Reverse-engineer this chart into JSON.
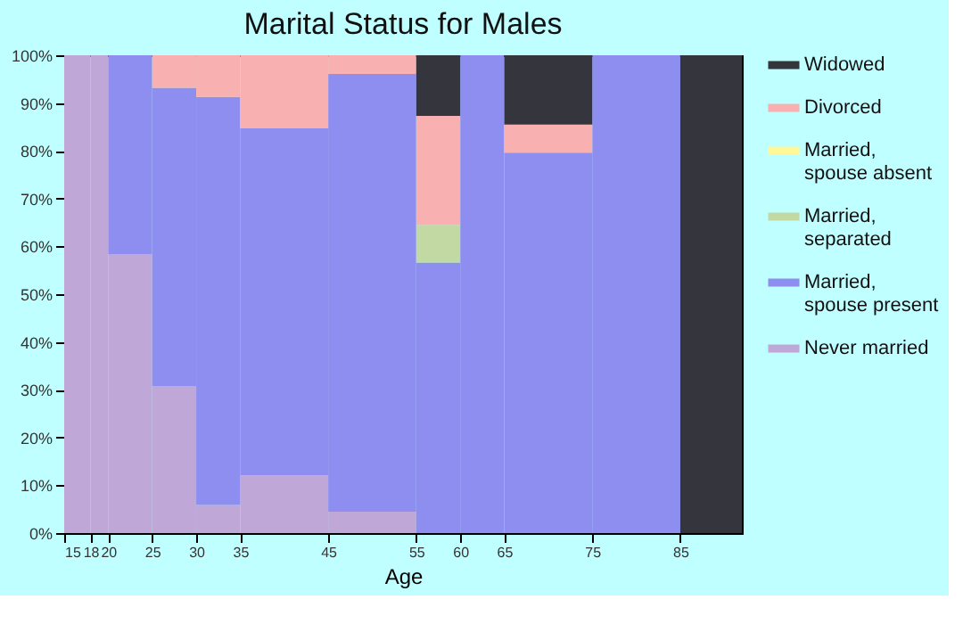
{
  "chart_data": {
    "type": "bar",
    "stacked": true,
    "title": "Marital Status for Males",
    "xlabel": "Age",
    "x": [
      16.5,
      19,
      22.5,
      27.5,
      32.5,
      40,
      50,
      57.5,
      62.5,
      70,
      80,
      88.5
    ],
    "xlim": [
      15,
      92
    ],
    "xticks": [
      15,
      18,
      20,
      25,
      30,
      35,
      45,
      55,
      60,
      65,
      75,
      85
    ],
    "ylim": [
      0,
      100
    ],
    "yticks": [
      {
        "value": 0,
        "label": "0%"
      },
      {
        "value": 10,
        "label": "10%"
      },
      {
        "value": 20,
        "label": "20%"
      },
      {
        "value": 30,
        "label": "30%"
      },
      {
        "value": 40,
        "label": "40%"
      },
      {
        "value": 50,
        "label": "50%"
      },
      {
        "value": 60,
        "label": "60%"
      },
      {
        "value": 70,
        "label": "70%"
      },
      {
        "value": 80,
        "label": "80%"
      },
      {
        "value": 90,
        "label": "90%"
      },
      {
        "value": 100,
        "label": "100%"
      }
    ],
    "legend": "right",
    "series": [
      {
        "name": "Never married",
        "color": "#bfa8d8",
        "values": [
          100,
          100,
          58.3,
          30.8,
          5.9,
          12.1,
          4.5,
          0,
          0,
          0,
          0,
          0
        ]
      },
      {
        "name": "Married, spouse present",
        "color": "#8e8ef0",
        "values": [
          0,
          0,
          41.7,
          62.4,
          85.4,
          72.6,
          91.6,
          56.6,
          100,
          79.6,
          100,
          0
        ]
      },
      {
        "name": "Married, separated",
        "color": "#c2d9a4",
        "values": [
          0,
          0,
          0,
          0,
          0,
          0,
          0,
          7.9,
          0,
          0,
          0,
          0
        ]
      },
      {
        "name": "Married, spouse absent",
        "color": "#fff899",
        "values": [
          0,
          0,
          0,
          0,
          0,
          0,
          0,
          0,
          0,
          0,
          0,
          0
        ]
      },
      {
        "name": "Divorced",
        "color": "#f8b0b0",
        "values": [
          0,
          0,
          0,
          6.8,
          8.7,
          15.3,
          3.9,
          22.8,
          0,
          5.9,
          0,
          0
        ]
      },
      {
        "name": "Widowed",
        "color": "#35363d",
        "values": [
          0,
          0,
          0,
          0,
          0,
          0,
          0,
          12.7,
          0,
          14.5,
          0,
          100
        ]
      }
    ]
  }
}
